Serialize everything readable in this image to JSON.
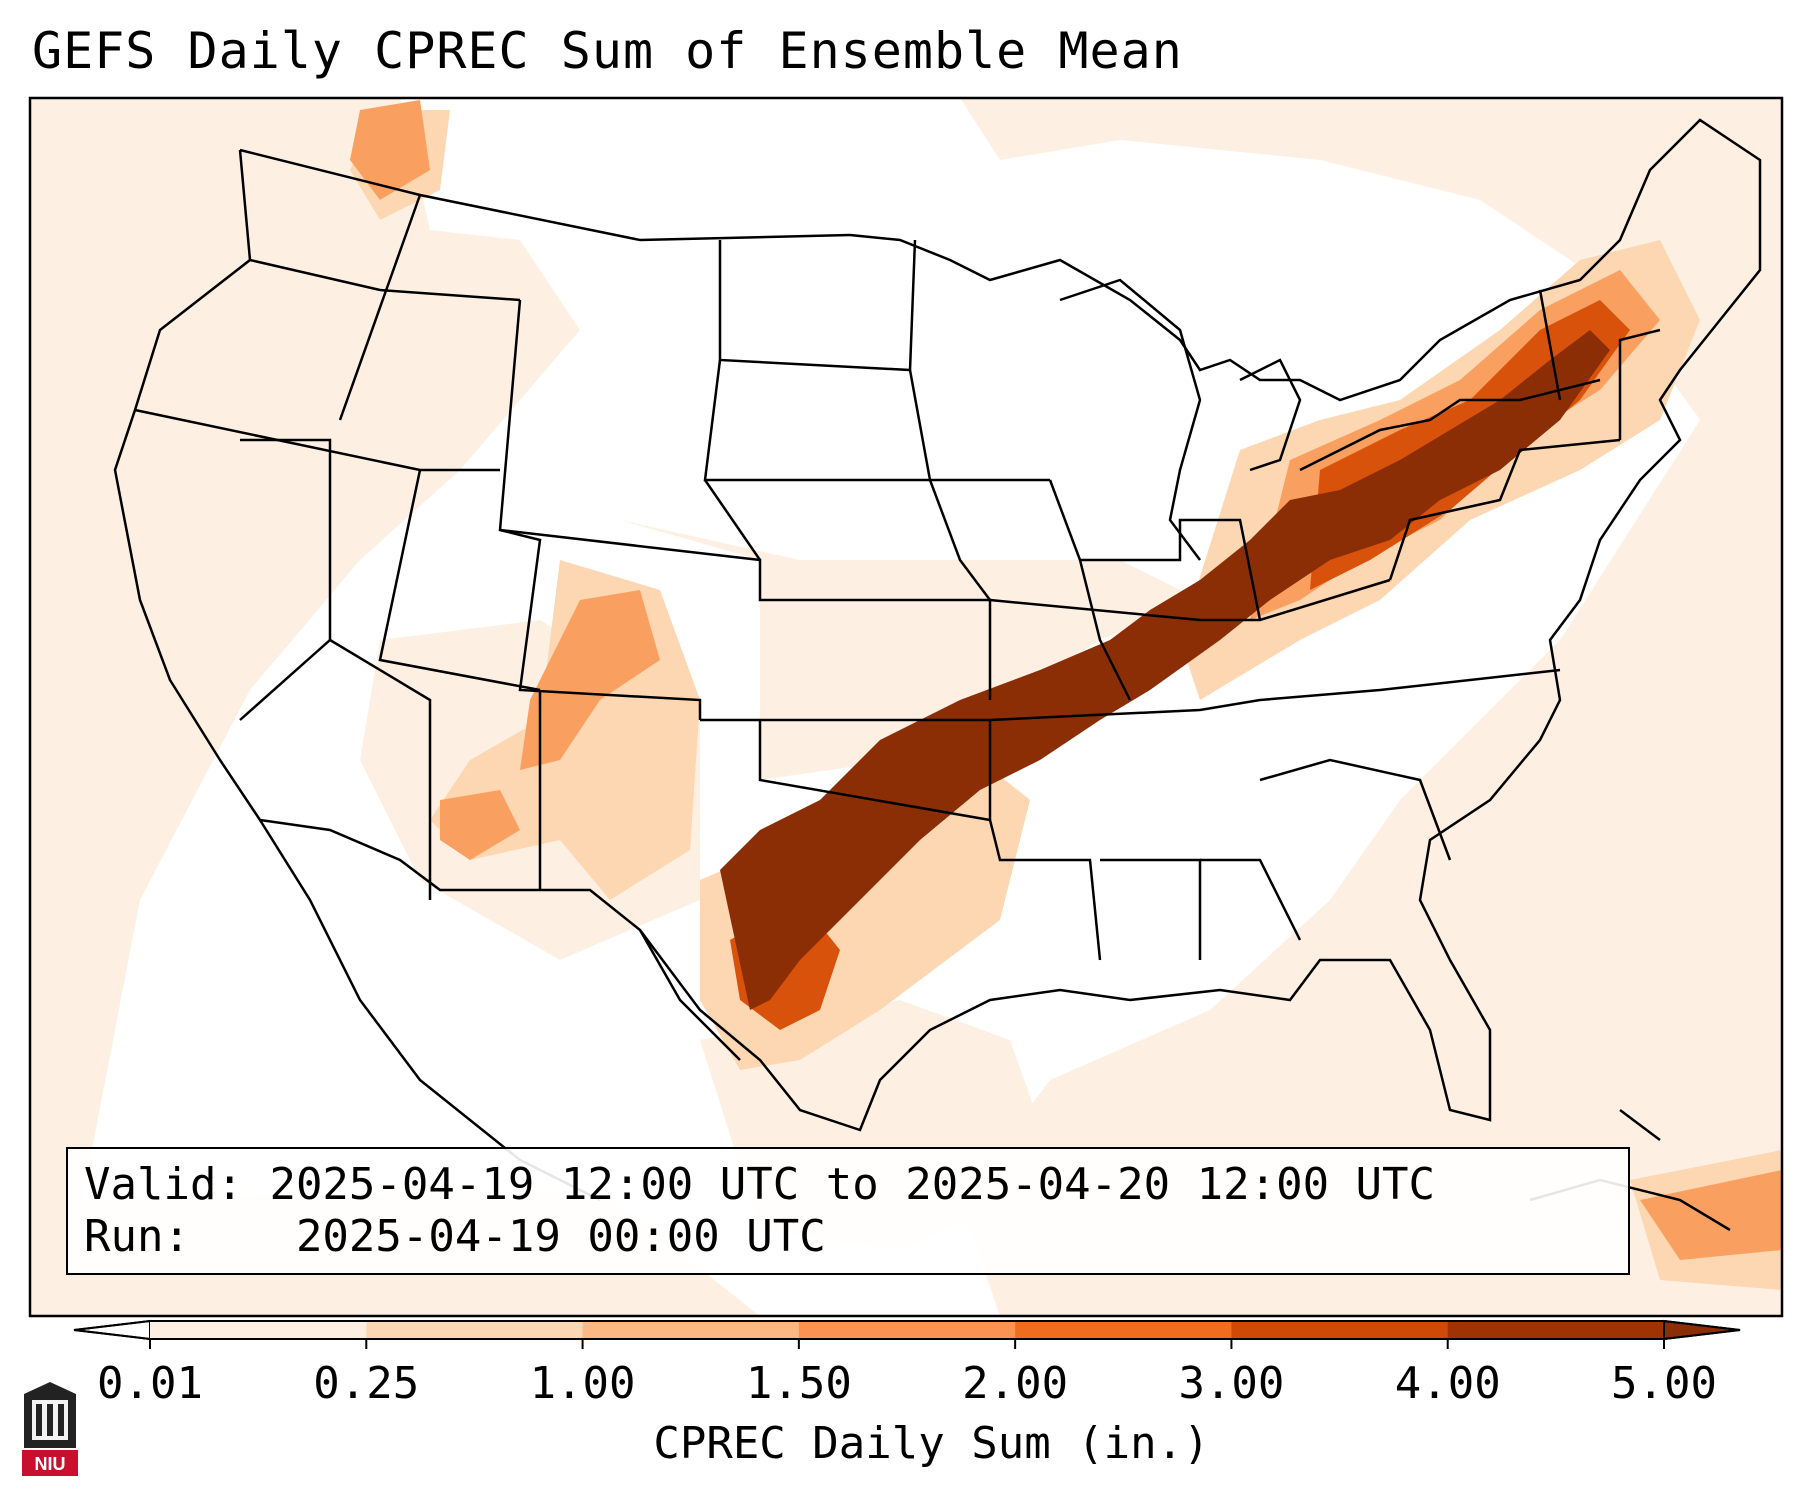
{
  "title": "GEFS Daily CPREC Sum of Ensemble Mean",
  "info": {
    "valid_label": "Valid:",
    "valid_value": "2025-04-19 12:00 UTC to 2025-04-20 12:00 UTC",
    "run_label": "Run:",
    "run_value": "2025-04-19 00:00 UTC"
  },
  "colorbar": {
    "label": "CPREC Daily Sum (in.)",
    "ticks": [
      "0.01",
      "0.25",
      "1.00",
      "1.50",
      "2.00",
      "3.00",
      "4.00",
      "5.00"
    ],
    "colors": [
      "#fdefe2",
      "#fdd7b4",
      "#fcb984",
      "#fb9453",
      "#f06c1f",
      "#cf4a06",
      "#a03303"
    ],
    "extend": "both"
  },
  "logo": {
    "text": "NIU",
    "icon": "niu-building-icon"
  },
  "map": {
    "region": "Contiguous United States",
    "heavy_band_color": "#8b2e05"
  }
}
